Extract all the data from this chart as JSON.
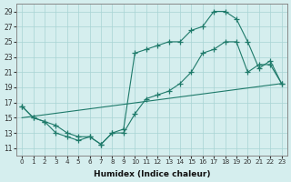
{
  "xlabel": "Humidex (Indice chaleur)",
  "background_color": "#d5eeee",
  "grid_color": "#a8d4d4",
  "line_color": "#1e7a6a",
  "xlim": [
    -0.5,
    23.5
  ],
  "ylim": [
    10,
    30
  ],
  "yticks": [
    11,
    13,
    15,
    17,
    19,
    21,
    23,
    25,
    27,
    29
  ],
  "xticks": [
    0,
    1,
    2,
    3,
    4,
    5,
    6,
    7,
    8,
    9,
    10,
    11,
    12,
    13,
    14,
    15,
    16,
    17,
    18,
    19,
    20,
    21,
    22,
    23
  ],
  "series": [
    {
      "x": [
        0,
        1,
        2,
        3,
        4,
        5,
        6,
        7,
        8,
        9,
        10,
        11,
        12,
        13,
        14,
        15,
        16,
        17,
        18,
        19,
        20,
        21,
        22,
        23
      ],
      "y": [
        16.5,
        15,
        14.5,
        14,
        13,
        12.5,
        12.5,
        11.5,
        13,
        13.5,
        23.5,
        24,
        24.5,
        25,
        25,
        26.5,
        27,
        29,
        29,
        28,
        25,
        21.5,
        22.5,
        19.5
      ],
      "marker": true
    },
    {
      "x": [
        0,
        1,
        2,
        3,
        4,
        5,
        6,
        7,
        8,
        9,
        10,
        11,
        12,
        13,
        14,
        15,
        16,
        17,
        18,
        19,
        20,
        21,
        22,
        23
      ],
      "y": [
        16.5,
        15,
        14.5,
        13,
        12.5,
        12,
        12.5,
        11.5,
        13,
        13,
        15.5,
        17.5,
        18,
        18.5,
        19.5,
        21,
        23.5,
        24,
        25,
        25,
        21,
        22,
        22,
        19.5
      ],
      "marker": true
    },
    {
      "x": [
        0,
        23
      ],
      "y": [
        15.0,
        19.5
      ],
      "marker": false
    }
  ]
}
